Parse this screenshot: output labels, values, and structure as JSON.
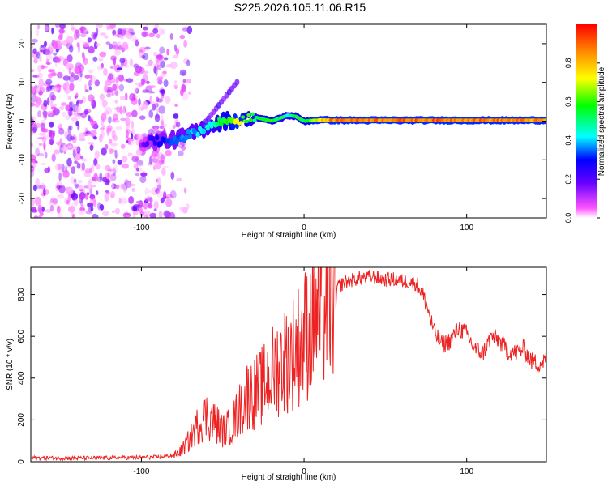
{
  "title": "S225.2026.105.11.06.R15",
  "colors": {
    "snr_line": "#ee2222",
    "axis": "#000000"
  },
  "chart_data": [
    {
      "type": "heatmap",
      "title": "S225.2026.105.11.06.R15",
      "xlabel": "Height of straight line (km)",
      "ylabel": "Frequency (Hz)",
      "xlim": [
        -168,
        149
      ],
      "ylim": [
        -25,
        25
      ],
      "xticks": [
        "-100",
        "0",
        "100"
      ],
      "yticks": [
        "-20",
        "-10",
        "0",
        "10",
        "20"
      ],
      "colorbar": {
        "label": "Normalized spectral amplitude",
        "range": [
          0,
          1
        ],
        "ticks": [
          "0.0",
          "0.2",
          "0.4",
          "0.6",
          "0.8"
        ],
        "colormap": "rainbow (magenta-blue-cyan-green-yellow-red)"
      },
      "signal_track": {
        "x": [
          -100,
          -90,
          -80,
          -70,
          -60,
          -50,
          -40,
          -30,
          -20,
          -10,
          -5,
          0,
          10,
          20,
          50,
          100,
          149
        ],
        "frequency": [
          -5.5,
          -5.2,
          -4.8,
          -3.5,
          -1.5,
          0,
          0.2,
          1.0,
          0,
          1.5,
          1.2,
          0,
          0.3,
          0.2,
          0.2,
          0.2,
          0.2
        ],
        "amplitude": [
          0.15,
          0.3,
          0.35,
          0.4,
          0.45,
          0.6,
          0.75,
          0.55,
          0.65,
          0.5,
          0.6,
          0.6,
          0.8,
          0.95,
          0.95,
          0.95,
          0.9
        ]
      },
      "noise_region": {
        "x_range": [
          -168,
          -85
        ],
        "amplitude_range": [
          0.02,
          0.2
        ]
      }
    },
    {
      "type": "line",
      "xlabel": "Height of straight line (km)",
      "ylabel": "SNR (10 * v/v)",
      "xlim": [
        -168,
        149
      ],
      "ylim": [
        0,
        930
      ],
      "xticks": [
        "-100",
        "0",
        "100"
      ],
      "yticks": [
        "0",
        "200",
        "400",
        "600",
        "800"
      ],
      "series": [
        {
          "name": "SNR",
          "x": [
            -168,
            -140,
            -120,
            -100,
            -90,
            -80,
            -75,
            -70,
            -65,
            -60,
            -55,
            -50,
            -45,
            -40,
            -35,
            -30,
            -25,
            -20,
            -15,
            -10,
            -5,
            0,
            5,
            10,
            15,
            20,
            25,
            30,
            35,
            40,
            45,
            50,
            55,
            60,
            65,
            70,
            75,
            80,
            85,
            90,
            95,
            100,
            105,
            110,
            115,
            120,
            125,
            130,
            135,
            140,
            145,
            149
          ],
          "values": [
            18,
            17,
            18,
            20,
            22,
            30,
            55,
            110,
            180,
            220,
            190,
            150,
            170,
            240,
            320,
            330,
            370,
            420,
            470,
            500,
            540,
            600,
            660,
            720,
            780,
            830,
            860,
            870,
            880,
            885,
            880,
            870,
            872,
            865,
            860,
            850,
            760,
            620,
            560,
            580,
            640,
            610,
            540,
            520,
            600,
            580,
            530,
            520,
            540,
            480,
            470,
            490
          ]
        }
      ]
    }
  ]
}
